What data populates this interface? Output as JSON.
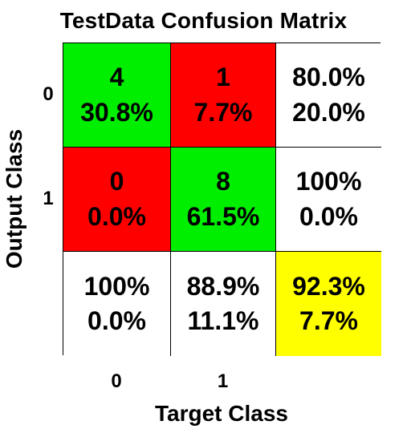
{
  "chart_data": {
    "type": "heatmap",
    "title": "TestData Confusion Matrix",
    "xlabel": "Target Class",
    "ylabel": "Output Class",
    "x_ticks": [
      "0",
      "1"
    ],
    "y_ticks": [
      "0",
      "1"
    ],
    "colors": {
      "correct": "#00ee00",
      "incorrect": "#ff0000",
      "summary": "#ffffff",
      "overall": "#ffff00"
    },
    "cells": [
      [
        {
          "kind": "correct",
          "lines": [
            "4",
            "30.8%"
          ]
        },
        {
          "kind": "incorrect",
          "lines": [
            "1",
            "7.7%"
          ]
        },
        {
          "kind": "summary",
          "lines": [
            "80.0%",
            "20.0%"
          ]
        }
      ],
      [
        {
          "kind": "incorrect",
          "lines": [
            "0",
            "0.0%"
          ]
        },
        {
          "kind": "correct",
          "lines": [
            "8",
            "61.5%"
          ]
        },
        {
          "kind": "summary",
          "lines": [
            "100%",
            "0.0%"
          ]
        }
      ],
      [
        {
          "kind": "summary",
          "lines": [
            "100%",
            "0.0%"
          ]
        },
        {
          "kind": "summary",
          "lines": [
            "88.9%",
            "11.1%"
          ]
        },
        {
          "kind": "overall",
          "lines": [
            "92.3%",
            "7.7%"
          ]
        }
      ]
    ]
  }
}
